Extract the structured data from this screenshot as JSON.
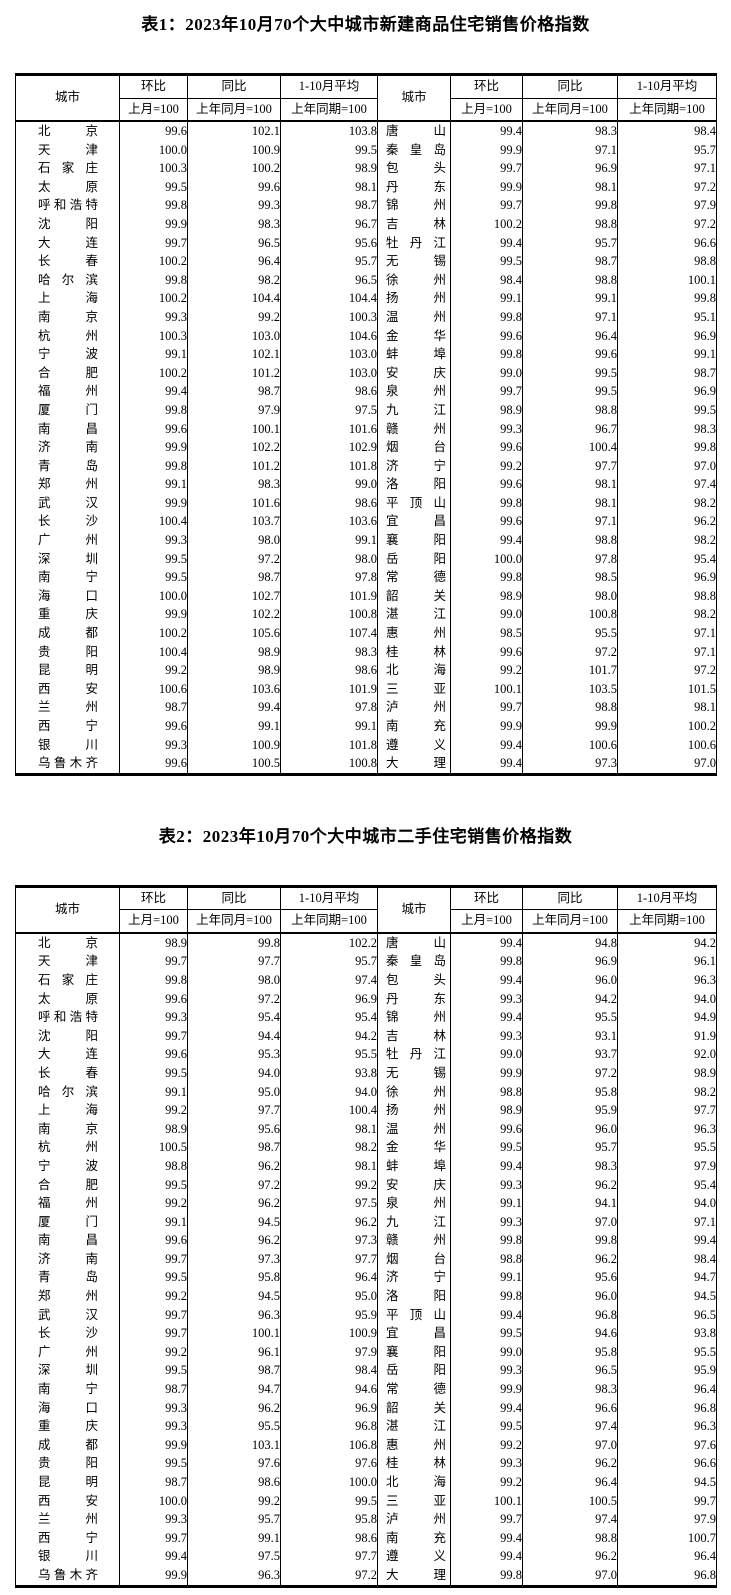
{
  "page": {
    "background": "#ffffff",
    "text_color": "#000000",
    "border_color": "#000000"
  },
  "tables": [
    {
      "title": "表1：2023年10月70个大中城市新建商品住宅销售价格指数",
      "columns": {
        "city": "城市",
        "mom": "环比",
        "mom_base": "上月=100",
        "yoy": "同比",
        "yoy_base": "上年同月=100",
        "avg": "1-10月平均",
        "avg_base": "上年同期=100"
      },
      "rows": [
        [
          "北京",
          "99.6",
          "102.1",
          "103.8",
          "唐山",
          "99.4",
          "98.3",
          "98.4"
        ],
        [
          "天津",
          "100.0",
          "100.9",
          "99.5",
          "秦皇岛",
          "99.9",
          "97.1",
          "95.7"
        ],
        [
          "石家庄",
          "100.3",
          "100.2",
          "98.9",
          "包头",
          "99.7",
          "96.9",
          "97.1"
        ],
        [
          "太原",
          "99.5",
          "99.6",
          "98.1",
          "丹东",
          "99.9",
          "98.1",
          "97.2"
        ],
        [
          "呼和浩特",
          "99.8",
          "99.3",
          "98.7",
          "锦州",
          "99.7",
          "99.8",
          "97.9"
        ],
        [
          "沈阳",
          "99.9",
          "98.3",
          "96.7",
          "吉林",
          "100.2",
          "98.8",
          "97.2"
        ],
        [
          "大连",
          "99.7",
          "96.5",
          "95.6",
          "牡丹江",
          "99.4",
          "95.7",
          "96.6"
        ],
        [
          "长春",
          "100.2",
          "96.4",
          "95.7",
          "无锡",
          "99.5",
          "98.7",
          "98.8"
        ],
        [
          "哈尔滨",
          "99.8",
          "98.2",
          "96.5",
          "徐州",
          "98.4",
          "98.8",
          "100.1"
        ],
        [
          "上海",
          "100.2",
          "104.4",
          "104.4",
          "扬州",
          "99.1",
          "99.1",
          "99.8"
        ],
        [
          "南京",
          "99.3",
          "99.2",
          "100.3",
          "温州",
          "99.8",
          "97.1",
          "95.1"
        ],
        [
          "杭州",
          "100.3",
          "103.0",
          "104.6",
          "金华",
          "99.6",
          "96.4",
          "96.9"
        ],
        [
          "宁波",
          "99.1",
          "102.1",
          "103.0",
          "蚌埠",
          "99.8",
          "99.6",
          "99.1"
        ],
        [
          "合肥",
          "100.2",
          "101.2",
          "103.0",
          "安庆",
          "99.0",
          "99.5",
          "98.7"
        ],
        [
          "福州",
          "99.4",
          "98.7",
          "98.6",
          "泉州",
          "99.7",
          "99.5",
          "96.9"
        ],
        [
          "厦门",
          "99.8",
          "97.9",
          "97.5",
          "九江",
          "98.9",
          "98.8",
          "99.5"
        ],
        [
          "南昌",
          "99.6",
          "100.1",
          "101.6",
          "赣州",
          "99.3",
          "96.7",
          "98.3"
        ],
        [
          "济南",
          "99.9",
          "102.2",
          "102.9",
          "烟台",
          "99.6",
          "100.4",
          "99.8"
        ],
        [
          "青岛",
          "99.8",
          "101.2",
          "101.8",
          "济宁",
          "99.2",
          "97.7",
          "97.0"
        ],
        [
          "郑州",
          "99.1",
          "98.3",
          "99.0",
          "洛阳",
          "99.6",
          "98.1",
          "97.4"
        ],
        [
          "武汉",
          "99.9",
          "101.6",
          "98.6",
          "平顶山",
          "99.8",
          "98.1",
          "98.2"
        ],
        [
          "长沙",
          "100.4",
          "103.7",
          "103.6",
          "宜昌",
          "99.6",
          "97.1",
          "96.2"
        ],
        [
          "广州",
          "99.3",
          "98.0",
          "99.1",
          "襄阳",
          "99.4",
          "98.8",
          "98.2"
        ],
        [
          "深圳",
          "99.5",
          "97.2",
          "98.0",
          "岳阳",
          "100.0",
          "97.8",
          "95.4"
        ],
        [
          "南宁",
          "99.5",
          "98.7",
          "97.8",
          "常德",
          "99.8",
          "98.5",
          "96.9"
        ],
        [
          "海口",
          "100.0",
          "102.7",
          "101.9",
          "韶关",
          "98.9",
          "98.0",
          "98.8"
        ],
        [
          "重庆",
          "99.9",
          "102.2",
          "100.8",
          "湛江",
          "99.0",
          "100.8",
          "98.2"
        ],
        [
          "成都",
          "100.2",
          "105.6",
          "107.4",
          "惠州",
          "98.5",
          "95.5",
          "97.1"
        ],
        [
          "贵阳",
          "100.4",
          "98.9",
          "98.3",
          "桂林",
          "99.6",
          "97.2",
          "97.1"
        ],
        [
          "昆明",
          "99.2",
          "98.9",
          "98.6",
          "北海",
          "99.2",
          "101.7",
          "97.2"
        ],
        [
          "西安",
          "100.6",
          "103.6",
          "101.9",
          "三亚",
          "100.1",
          "103.5",
          "101.5"
        ],
        [
          "兰州",
          "98.7",
          "99.4",
          "97.8",
          "泸州",
          "99.7",
          "98.8",
          "98.1"
        ],
        [
          "西宁",
          "99.6",
          "99.1",
          "99.1",
          "南充",
          "99.9",
          "99.9",
          "100.2"
        ],
        [
          "银川",
          "99.3",
          "100.9",
          "101.8",
          "遵义",
          "99.4",
          "100.6",
          "100.6"
        ],
        [
          "乌鲁木齐",
          "99.6",
          "100.5",
          "100.8",
          "大理",
          "99.4",
          "97.3",
          "97.0"
        ]
      ]
    },
    {
      "title": "表2：2023年10月70个大中城市二手住宅销售价格指数",
      "columns": {
        "city": "城市",
        "mom": "环比",
        "mom_base": "上月=100",
        "yoy": "同比",
        "yoy_base": "上年同月=100",
        "avg": "1-10月平均",
        "avg_base": "上年同期=100"
      },
      "rows": [
        [
          "北京",
          "98.9",
          "99.8",
          "102.2",
          "唐山",
          "99.4",
          "94.8",
          "94.2"
        ],
        [
          "天津",
          "99.7",
          "97.7",
          "95.7",
          "秦皇岛",
          "99.8",
          "96.9",
          "96.1"
        ],
        [
          "石家庄",
          "99.8",
          "98.0",
          "97.4",
          "包头",
          "99.4",
          "96.0",
          "96.3"
        ],
        [
          "太原",
          "99.6",
          "97.2",
          "96.9",
          "丹东",
          "99.3",
          "94.2",
          "94.0"
        ],
        [
          "呼和浩特",
          "99.3",
          "95.4",
          "95.4",
          "锦州",
          "99.4",
          "95.5",
          "94.9"
        ],
        [
          "沈阳",
          "99.7",
          "94.4",
          "94.2",
          "吉林",
          "99.3",
          "93.1",
          "91.9"
        ],
        [
          "大连",
          "99.6",
          "95.3",
          "95.5",
          "牡丹江",
          "99.0",
          "93.7",
          "92.0"
        ],
        [
          "长春",
          "99.5",
          "94.0",
          "93.8",
          "无锡",
          "99.9",
          "97.2",
          "98.9"
        ],
        [
          "哈尔滨",
          "99.1",
          "95.0",
          "94.0",
          "徐州",
          "98.8",
          "95.8",
          "98.2"
        ],
        [
          "上海",
          "99.2",
          "97.7",
          "100.4",
          "扬州",
          "98.9",
          "95.9",
          "97.7"
        ],
        [
          "南京",
          "98.9",
          "95.6",
          "98.1",
          "温州",
          "99.6",
          "96.0",
          "96.3"
        ],
        [
          "杭州",
          "100.5",
          "98.7",
          "98.2",
          "金华",
          "99.5",
          "95.7",
          "95.5"
        ],
        [
          "宁波",
          "98.8",
          "96.2",
          "98.1",
          "蚌埠",
          "99.4",
          "98.3",
          "97.9"
        ],
        [
          "合肥",
          "99.5",
          "97.2",
          "99.2",
          "安庆",
          "99.3",
          "96.2",
          "95.4"
        ],
        [
          "福州",
          "99.2",
          "96.2",
          "97.5",
          "泉州",
          "99.1",
          "94.1",
          "94.0"
        ],
        [
          "厦门",
          "99.1",
          "94.5",
          "96.2",
          "九江",
          "99.3",
          "97.0",
          "97.1"
        ],
        [
          "南昌",
          "99.6",
          "96.2",
          "97.3",
          "赣州",
          "99.8",
          "99.8",
          "99.4"
        ],
        [
          "济南",
          "99.7",
          "97.3",
          "97.7",
          "烟台",
          "98.8",
          "96.2",
          "98.4"
        ],
        [
          "青岛",
          "99.5",
          "95.8",
          "96.4",
          "济宁",
          "99.1",
          "95.6",
          "94.7"
        ],
        [
          "郑州",
          "99.2",
          "94.5",
          "95.0",
          "洛阳",
          "99.8",
          "96.0",
          "94.5"
        ],
        [
          "武汉",
          "99.7",
          "96.3",
          "95.9",
          "平顶山",
          "99.4",
          "96.8",
          "96.5"
        ],
        [
          "长沙",
          "99.7",
          "100.1",
          "100.9",
          "宜昌",
          "99.5",
          "94.6",
          "93.8"
        ],
        [
          "广州",
          "99.2",
          "96.1",
          "97.9",
          "襄阳",
          "99.0",
          "95.8",
          "95.5"
        ],
        [
          "深圳",
          "99.5",
          "98.7",
          "98.4",
          "岳阳",
          "99.3",
          "96.5",
          "95.9"
        ],
        [
          "南宁",
          "98.7",
          "94.7",
          "94.6",
          "常德",
          "99.9",
          "98.3",
          "96.4"
        ],
        [
          "海口",
          "99.3",
          "96.2",
          "96.9",
          "韶关",
          "99.4",
          "96.6",
          "96.8"
        ],
        [
          "重庆",
          "99.3",
          "95.5",
          "96.8",
          "湛江",
          "99.5",
          "97.4",
          "96.3"
        ],
        [
          "成都",
          "99.9",
          "103.1",
          "106.8",
          "惠州",
          "99.2",
          "97.0",
          "97.6"
        ],
        [
          "贵阳",
          "99.5",
          "97.6",
          "97.6",
          "桂林",
          "99.3",
          "96.2",
          "96.6"
        ],
        [
          "昆明",
          "98.7",
          "98.6",
          "100.0",
          "北海",
          "99.2",
          "96.4",
          "94.5"
        ],
        [
          "西安",
          "100.0",
          "99.2",
          "99.5",
          "三亚",
          "100.1",
          "100.5",
          "99.7"
        ],
        [
          "兰州",
          "99.3",
          "95.7",
          "95.8",
          "泸州",
          "99.7",
          "97.4",
          "97.9"
        ],
        [
          "西宁",
          "99.7",
          "99.1",
          "98.6",
          "南充",
          "99.4",
          "98.8",
          "100.7"
        ],
        [
          "银川",
          "99.4",
          "97.5",
          "97.7",
          "遵义",
          "99.4",
          "96.2",
          "96.4"
        ],
        [
          "乌鲁木齐",
          "99.9",
          "96.3",
          "97.2",
          "大理",
          "99.8",
          "97.0",
          "96.8"
        ]
      ]
    }
  ]
}
